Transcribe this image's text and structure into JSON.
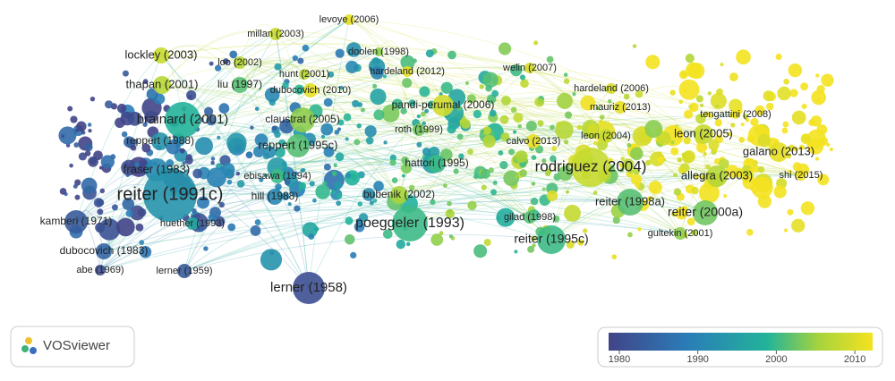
{
  "nodes": [
    {
      "label": "levoye (2006)"
    },
    {
      "label": "millan (2003)"
    },
    {
      "label": "doolen (1998)"
    },
    {
      "label": "lockley (2003)"
    },
    {
      "label": "loo (2002)"
    },
    {
      "label": "hunt (2001)"
    },
    {
      "label": "hardeland (2012)"
    },
    {
      "label": "welin (2007)"
    },
    {
      "label": "thapan (2001)"
    },
    {
      "label": "liu (1997)"
    },
    {
      "label": "dubocovich (2010)"
    },
    {
      "label": "hardeland (2006)"
    },
    {
      "label": "brainard (2001)"
    },
    {
      "label": "claustrat (2005)"
    },
    {
      "label": "pandi-perumal (2006)"
    },
    {
      "label": "mauriz (2013)"
    },
    {
      "label": "tengattini (2008)"
    },
    {
      "label": "roth (1999)"
    },
    {
      "label": "leon (2004)"
    },
    {
      "label": "leon (2005)"
    },
    {
      "label": "reppert (1988)"
    },
    {
      "label": "reppert (1995c)"
    },
    {
      "label": "calvo (2013)"
    },
    {
      "label": "galano (2013)"
    },
    {
      "label": "fraser (1983)"
    },
    {
      "label": "hattori (1995)"
    },
    {
      "label": "rodriguez (2004)"
    },
    {
      "label": "allegra (2003)"
    },
    {
      "label": "shi (2015)"
    },
    {
      "label": "ebisawa (1994)"
    },
    {
      "label": "reiter (1991c)"
    },
    {
      "label": "hill (1988)"
    },
    {
      "label": "bubenik (2002)"
    },
    {
      "label": "reiter (1998a)"
    },
    {
      "label": "kamberi (1971)"
    },
    {
      "label": "huether (1993)"
    },
    {
      "label": "poeggeler (1993)"
    },
    {
      "label": "gilad (1998)"
    },
    {
      "label": "reiter (2000a)"
    },
    {
      "label": "reiter (1995c)"
    },
    {
      "label": "gultekin (2001)"
    },
    {
      "label": "dubocovich (1983)"
    },
    {
      "label": "abe (1969)"
    },
    {
      "label": "lerner (1959)"
    },
    {
      "label": "lerner (1958)"
    }
  ],
  "logo": "VOSviewer",
  "legend": {
    "ticks": [
      1980,
      1990,
      2000,
      2010
    ]
  }
}
